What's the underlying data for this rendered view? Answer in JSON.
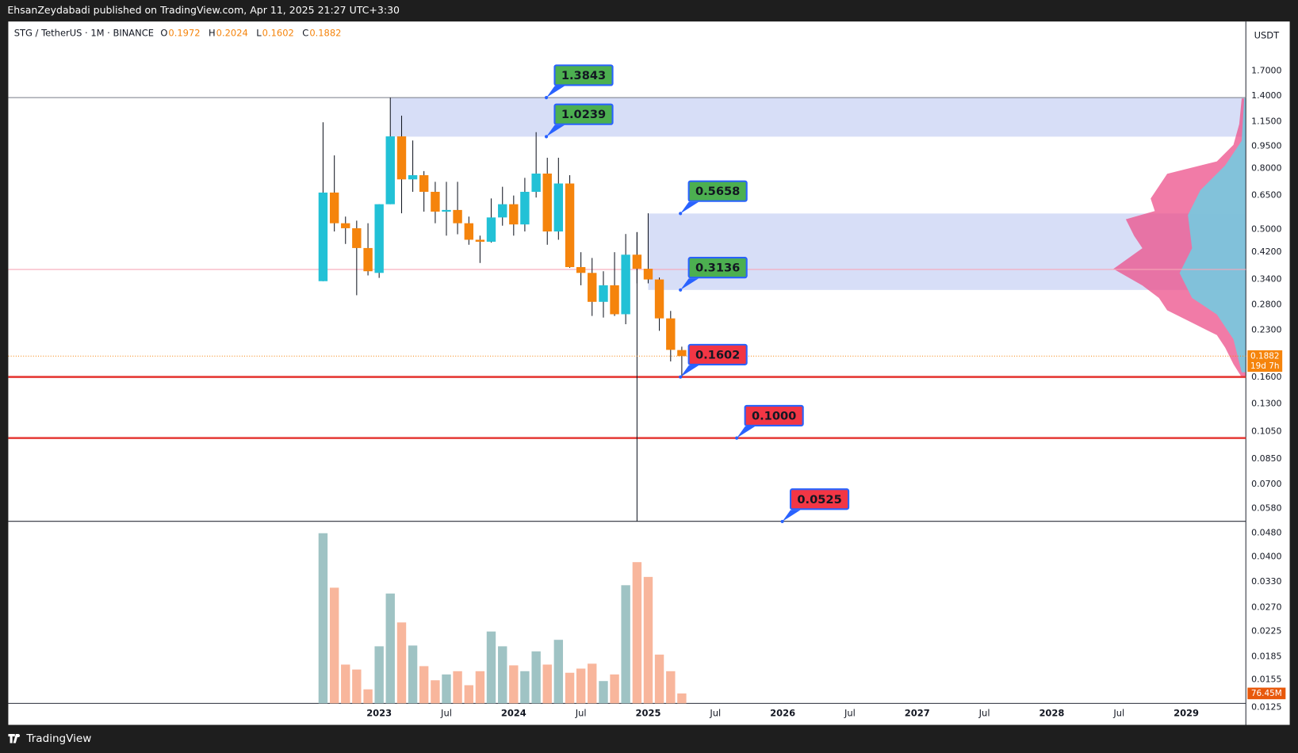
{
  "header": {
    "publisher": "EhsanZeydabadi published on TradingView.com, Apr 11, 2025 21:27 UTC+3:30"
  },
  "footer": {
    "brand": "TradingView"
  },
  "chart_data": {
    "type": "candlestick",
    "symbol": "STG / TetherUS · 1M · BINANCE",
    "ohlc_legend": [
      {
        "label": "O",
        "value": 0.1972
      },
      {
        "label": "H",
        "value": 0.2024
      },
      {
        "label": "L",
        "value": 0.1602
      },
      {
        "label": "C",
        "value": 0.1882
      }
    ],
    "currency": "USDT",
    "log_scale": true,
    "grid": false,
    "x": [
      2022.583,
      2022.667,
      2022.75,
      2022.833,
      2022.917,
      2023,
      2023.083,
      2023.167,
      2023.25,
      2023.333,
      2023.417,
      2023.5,
      2023.583,
      2023.667,
      2023.75,
      2023.833,
      2023.917,
      2024,
      2024.083,
      2024.167,
      2024.25,
      2024.333,
      2024.417,
      2024.5,
      2024.583,
      2024.667,
      2024.75,
      2024.833,
      2024.917,
      2025,
      2025.083,
      2025.167,
      2025.25
    ],
    "open": [
      0.3356,
      0.665,
      0.5248,
      0.505,
      0.4334,
      0.3577,
      0.6078,
      1.026,
      0.7362,
      0.7604,
      0.6688,
      0.574,
      0.5814,
      0.5248,
      0.462,
      0.455,
      0.5488,
      0.6078,
      0.52,
      0.6688,
      0.77,
      0.4925,
      0.7132,
      0.3741,
      0.3577,
      0.2861,
      0.3251,
      0.26,
      0.4117,
      0.3693,
      0.34,
      0.2518,
      0.1972
    ],
    "high": [
      1.144,
      0.886,
      0.5524,
      0.5353,
      0.5248,
      0.6078,
      1.3843,
      1.204,
      0.994,
      0.7848,
      0.7225,
      0.7225,
      0.7225,
      0.5524,
      0.4769,
      0.6355,
      0.6954,
      0.65,
      0.745,
      1.06,
      0.87,
      0.87,
      0.7604,
      0.4197,
      0.4014,
      0.3623,
      0.4197,
      0.483,
      0.49,
      0.5667,
      0.3451,
      0.2667,
      0.2024
    ],
    "low": [
      0.3356,
      0.4925,
      0.4473,
      0.3011,
      0.3508,
      0.3442,
      0.6078,
      0.5667,
      0.6688,
      0.574,
      0.5248,
      0.4769,
      0.482,
      0.4445,
      0.3862,
      0.452,
      0.515,
      0.4769,
      0.4925,
      0.64,
      0.4445,
      0.462,
      0.372,
      0.3251,
      0.2566,
      0.2534,
      0.2566,
      0.2407,
      0.33,
      0.33,
      0.2288,
      0.1806,
      0.1602
    ],
    "close": [
      0.665,
      0.5248,
      0.505,
      0.4334,
      0.3623,
      0.6078,
      1.026,
      0.7362,
      0.7604,
      0.6688,
      0.574,
      0.5814,
      0.5248,
      0.462,
      0.455,
      0.5488,
      0.6078,
      0.52,
      0.6688,
      0.77,
      0.4925,
      0.7132,
      0.3741,
      0.3577,
      0.2861,
      0.3251,
      0.26,
      0.4117,
      0.3693,
      0.34,
      0.2518,
      0.1975,
      0.1882
    ],
    "up_color": "#22c1d6",
    "down_color": "#f5840c",
    "volume": {
      "values": [
        1312,
        892,
        299,
        261,
        108,
        440,
        847,
        624,
        446,
        287,
        178,
        223,
        248,
        140,
        248,
        554,
        440,
        293,
        248,
        401,
        299,
        490,
        236,
        268,
        306,
        172,
        223,
        911,
        1089,
        975,
        376,
        248,
        76.45
      ],
      "ylim": [
        0,
        1340
      ],
      "up_color": "#9fc3c4",
      "down_color": "#f8b69c",
      "last_label": "76.45M"
    },
    "xlim": [
      2020.243,
      2029.443
    ],
    "xticks": [
      2023,
      {
        "value": 2023.5,
        "label": "Jul"
      },
      2024,
      {
        "value": 2024.5,
        "label": "Jul"
      },
      2025,
      {
        "value": 2025.5,
        "label": "Jul"
      },
      2026,
      {
        "value": 2026.5,
        "label": "Jul"
      },
      2027,
      {
        "value": 2027.5,
        "label": "Jul"
      },
      2028,
      {
        "value": 2028.5,
        "label": "Jul"
      },
      2029
    ],
    "ylim": [
      0.0129,
      2.49
    ],
    "yticks": [
      {
        "value": 1.7,
        "label": "1.7000"
      },
      {
        "value": 1.4,
        "label": "1.4000"
      },
      {
        "value": 1.15,
        "label": "1.1500"
      },
      {
        "value": 0.95,
        "label": "0.9500"
      },
      {
        "value": 0.8,
        "label": "0.8000"
      },
      {
        "value": 0.65,
        "label": "0.6500"
      },
      {
        "value": 0.5,
        "label": "0.5000"
      },
      {
        "value": 0.42,
        "label": "0.4200"
      },
      {
        "value": 0.34,
        "label": "0.3400"
      },
      {
        "value": 0.28,
        "label": "0.2800"
      },
      {
        "value": 0.23,
        "label": "0.2300"
      },
      {
        "value": 0.16,
        "label": "0.1600"
      },
      {
        "value": 0.13,
        "label": "0.1300"
      },
      {
        "value": 0.105,
        "label": "0.1050"
      },
      {
        "value": 0.085,
        "label": "0.0850"
      },
      {
        "value": 0.07,
        "label": "0.0700"
      },
      {
        "value": 0.058,
        "label": "0.0580"
      },
      {
        "value": 0.048,
        "label": "0.0480"
      },
      {
        "value": 0.04,
        "label": "0.0400"
      },
      {
        "value": 0.033,
        "label": "0.0330"
      },
      {
        "value": 0.027,
        "label": "0.0270"
      },
      0.0225,
      0.0185,
      0.0155,
      0.0125
    ],
    "levels": [
      {
        "value": 1.3843,
        "color": "#4caf50",
        "line": "#787b86"
      },
      {
        "value": 1.0239,
        "color": "#4caf50"
      },
      {
        "value": 0.5658,
        "color": "#4caf50"
      },
      {
        "value": 0.3136,
        "color": "#4caf50"
      },
      {
        "value": 0.1602,
        "color": "#f23645",
        "line": "#e53935"
      },
      {
        "value": 0.1,
        "label": "0.1000",
        "color": "#f23645",
        "line": "#e53935"
      },
      {
        "value": 0.0525,
        "color": "#f23645"
      }
    ],
    "zones": [
      {
        "top": 1.3843,
        "bottom": 1.0239,
        "start": 2023.083,
        "color": "#d3daf6"
      },
      {
        "top": 0.5658,
        "bottom": 0.3136,
        "start": 2025,
        "color": "#d3daf6"
      }
    ],
    "poc": 0.3674,
    "cursor_x": 2024.917,
    "countdown": "19d 7h"
  }
}
